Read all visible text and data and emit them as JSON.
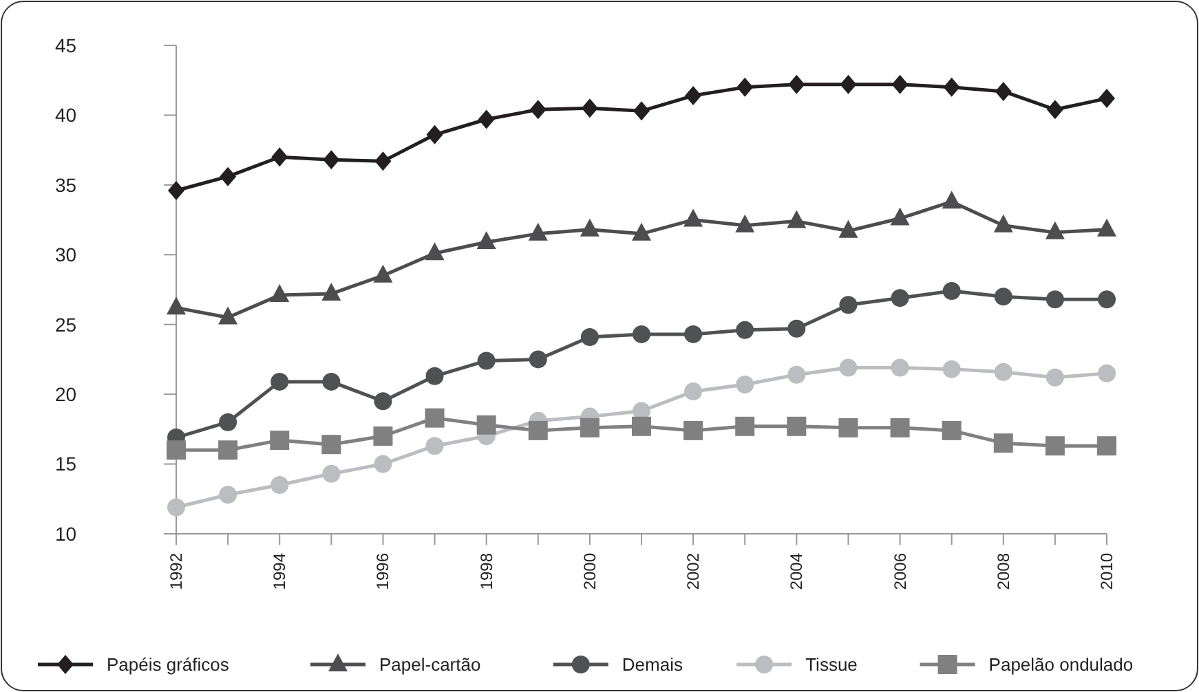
{
  "chart_data": {
    "type": "line",
    "x": [
      1992,
      1993,
      1994,
      1995,
      1996,
      1997,
      1998,
      1999,
      2000,
      2001,
      2002,
      2003,
      2004,
      2005,
      2006,
      2007,
      2008,
      2009,
      2010
    ],
    "series": [
      {
        "name": "Papéis gráficos",
        "color": "#231f20",
        "marker": "diamond",
        "values": [
          34.6,
          35.6,
          37.0,
          36.8,
          36.7,
          38.6,
          39.7,
          40.4,
          40.5,
          40.3,
          41.4,
          42.0,
          42.2,
          42.2,
          42.2,
          42.0,
          41.7,
          40.4,
          41.2
        ]
      },
      {
        "name": "Papel-cartão",
        "color": "#4d4d4f",
        "marker": "triangle",
        "values": [
          26.2,
          25.5,
          27.1,
          27.2,
          28.5,
          30.1,
          30.9,
          31.5,
          31.8,
          31.5,
          32.5,
          32.1,
          32.4,
          31.7,
          32.6,
          33.8,
          32.1,
          31.6,
          31.8
        ]
      },
      {
        "name": "Demais",
        "color": "#505153",
        "marker": "circle",
        "values": [
          16.9,
          18.0,
          20.9,
          20.9,
          19.5,
          21.3,
          22.4,
          22.5,
          24.1,
          24.3,
          24.3,
          24.6,
          24.7,
          26.4,
          26.9,
          27.4,
          27.0,
          26.8,
          26.8
        ]
      },
      {
        "name": "Tissue",
        "color": "#bcbdc0",
        "marker": "circle",
        "values": [
          11.9,
          12.8,
          13.5,
          14.3,
          15.0,
          16.3,
          17.0,
          18.1,
          18.4,
          18.8,
          20.2,
          20.7,
          21.4,
          21.9,
          21.9,
          21.8,
          21.6,
          21.2,
          21.5
        ]
      },
      {
        "name": "Papelão ondulado",
        "color": "#808080",
        "marker": "square",
        "values": [
          16.0,
          16.0,
          16.7,
          16.4,
          17.0,
          18.3,
          17.8,
          17.4,
          17.6,
          17.7,
          17.4,
          17.7,
          17.7,
          17.6,
          17.6,
          17.4,
          16.5,
          16.3,
          16.3
        ]
      }
    ],
    "xlim": [
      1992,
      2010
    ],
    "xticks": [
      1992,
      {
        "value": 1993,
        "label": null
      },
      1994,
      {
        "value": 1995,
        "label": null
      },
      1996,
      {
        "value": 1997,
        "label": null
      },
      1998,
      {
        "value": 1999,
        "label": null
      },
      2000,
      {
        "value": 2001,
        "label": null
      },
      2002,
      {
        "value": 2003,
        "label": null
      },
      2004,
      {
        "value": 2005,
        "label": null
      },
      2006,
      {
        "value": 2007,
        "label": null
      },
      2008,
      {
        "value": 2009,
        "label": null
      },
      2010
    ],
    "ylim": [
      10,
      45
    ],
    "yticks": [
      10,
      15,
      20,
      25,
      30,
      35,
      40,
      45
    ],
    "grid": false,
    "legend": "bottom",
    "line_style": "solid"
  }
}
